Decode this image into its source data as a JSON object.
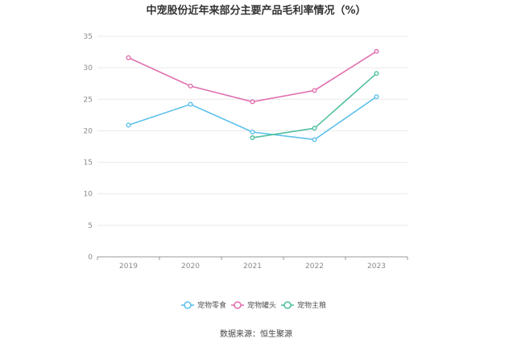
{
  "chart_data": {
    "type": "line",
    "title": "中宠股份近年来部分主要产品毛利率情况（%）",
    "xlabel": "",
    "ylabel": "",
    "categories": [
      "2019",
      "2020",
      "2021",
      "2022",
      "2023"
    ],
    "ylim": [
      0,
      35
    ],
    "yticks": [
      0,
      5,
      10,
      15,
      20,
      25,
      30,
      35
    ],
    "grid": true,
    "legend_position": "bottom-center",
    "series": [
      {
        "name": "宠物零食",
        "color": "#5bc0eb",
        "values": [
          20.9,
          24.2,
          19.8,
          18.6,
          25.4
        ]
      },
      {
        "name": "宠物罐头",
        "color": "#e070b0",
        "values": [
          31.6,
          27.1,
          24.6,
          26.4,
          32.6
        ]
      },
      {
        "name": "宠物主粮",
        "color": "#4fbf9f",
        "values": [
          null,
          null,
          18.9,
          20.4,
          29.1
        ]
      }
    ]
  },
  "source": "数据来源：恒生聚源"
}
